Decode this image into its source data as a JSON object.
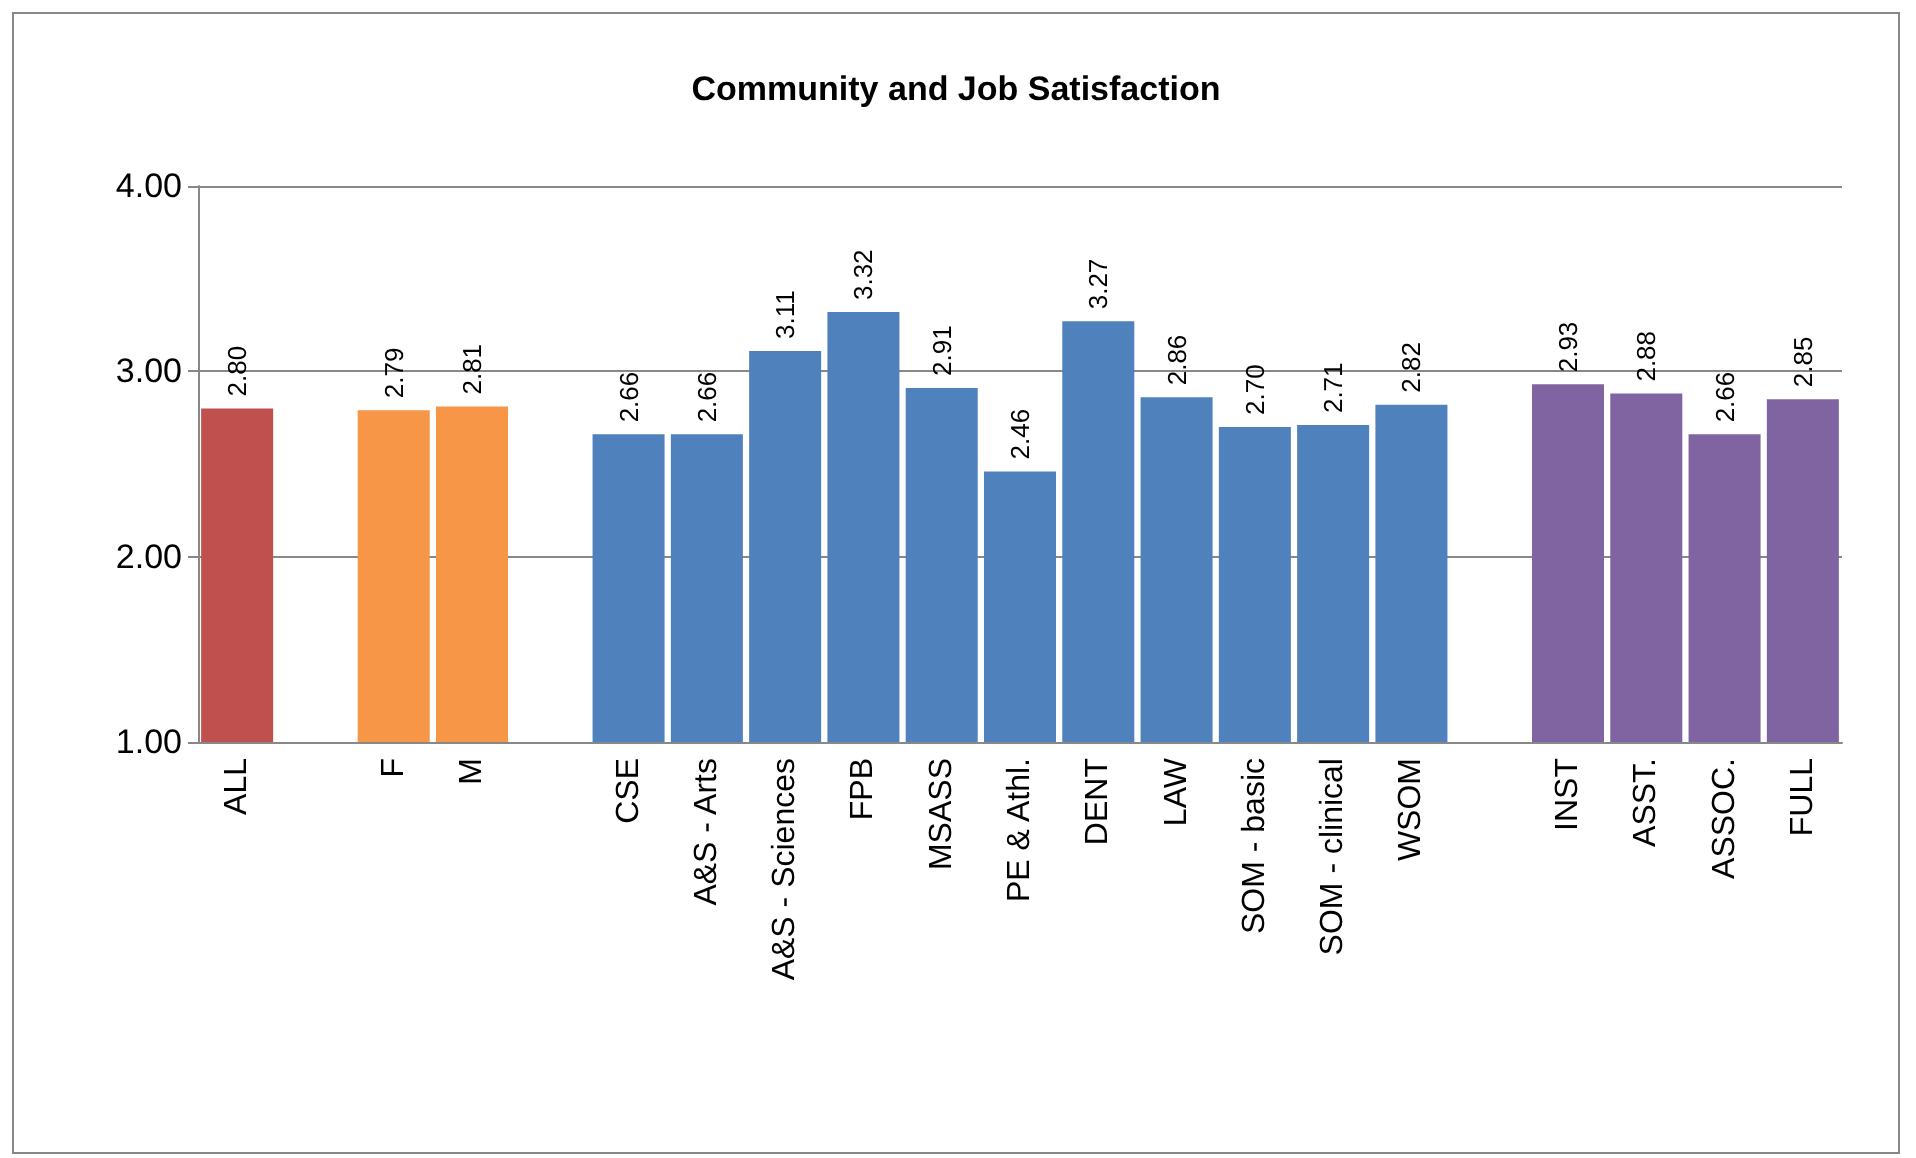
{
  "chart_data": {
    "type": "bar",
    "title": "Community and Job Satisfaction",
    "categories": [
      "ALL",
      null,
      "F",
      "M",
      null,
      "CSE",
      "A&S - Arts",
      "A&S - Sciences",
      "FPB",
      "MSASS",
      "PE & Athl.",
      "DENT",
      "LAW",
      "SOM - basic",
      "SOM - clinical",
      "WSOM",
      null,
      "INST",
      "ASST.",
      "ASSOC.",
      "FULL"
    ],
    "values": [
      2.8,
      null,
      2.79,
      2.81,
      null,
      2.66,
      2.66,
      3.11,
      3.32,
      2.91,
      2.46,
      3.27,
      2.86,
      2.7,
      2.71,
      2.82,
      null,
      2.93,
      2.88,
      2.66,
      2.85
    ],
    "value_labels": [
      "2.80",
      null,
      "2.79",
      "2.81",
      null,
      "2.66",
      "2.66",
      "3.11",
      "3.32",
      "2.91",
      "2.46",
      "3.27",
      "2.86",
      "2.70",
      "2.71",
      "2.82",
      null,
      "2.93",
      "2.88",
      "2.66",
      "2.85"
    ],
    "colors": [
      "#c0504d",
      null,
      "#f79646",
      "#f79646",
      null,
      "#4f81bd",
      "#4f81bd",
      "#4f81bd",
      "#4f81bd",
      "#4f81bd",
      "#4f81bd",
      "#4f81bd",
      "#4f81bd",
      "#4f81bd",
      "#4f81bd",
      "#4f81bd",
      null,
      "#8064a2",
      "#8064a2",
      "#8064a2",
      "#8064a2"
    ],
    "ylim": [
      1,
      4
    ],
    "yticks": [
      {
        "value": 1,
        "label": "1.00"
      },
      {
        "value": 2,
        "label": "2.00"
      },
      {
        "value": 3,
        "label": "3.00"
      },
      {
        "value": 4,
        "label": "4.00"
      }
    ],
    "grid": "y"
  }
}
